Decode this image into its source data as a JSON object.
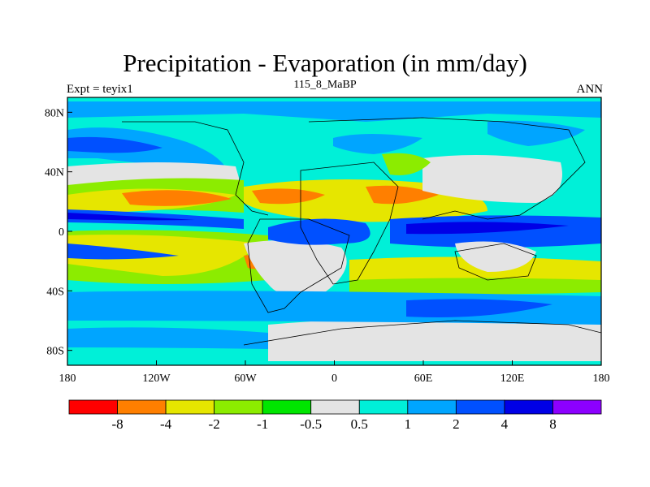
{
  "title": "Precipitation - Evaporation (in mm/day)",
  "left_label": "Expt = teyix1",
  "center_label": "115_8_MaBP",
  "right_label": "ANN",
  "map": {
    "x_ticks": [
      "180",
      "120W",
      "60W",
      "0",
      "60E",
      "120E",
      "180"
    ],
    "y_ticks": [
      "80N",
      "40N",
      "0",
      "40S",
      "80S"
    ]
  },
  "colorbar": {
    "colors": [
      "#ff0000",
      "#ff7f00",
      "#e6e600",
      "#8cec00",
      "#00e600",
      "#e4e4e4",
      "#00f0d8",
      "#00a5ff",
      "#0050ff",
      "#0000e6",
      "#8c00ff"
    ],
    "labels": [
      "-8",
      "-4",
      "-2",
      "-1",
      "-0.5",
      "0.5",
      "1",
      "2",
      "4",
      "8"
    ]
  }
}
